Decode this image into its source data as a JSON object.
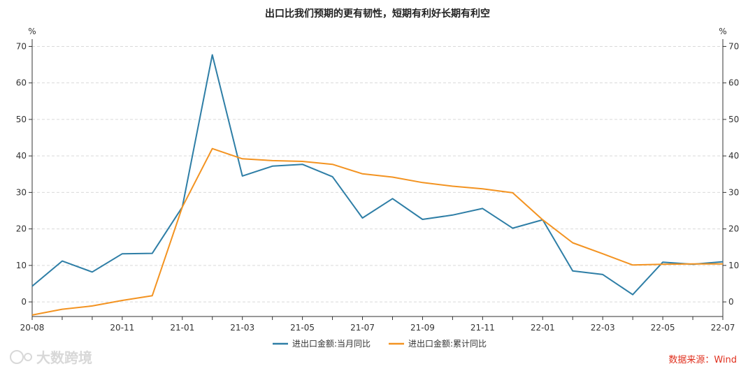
{
  "chart_data": {
    "type": "line",
    "title": "出口比我们预期的更有韧性，短期有利好长期有利空",
    "left_unit": "%",
    "right_unit": "%",
    "ylim": [
      -4,
      72
    ],
    "yticks": [
      0,
      10,
      20,
      30,
      40,
      50,
      60,
      70
    ],
    "grid": true,
    "legend_position": "bottom",
    "categories": [
      "20-08",
      "20-09",
      "20-10",
      "20-11",
      "20-12",
      "21-01",
      "21-02",
      "21-03",
      "21-04",
      "21-05",
      "21-06",
      "21-07",
      "21-08",
      "21-09",
      "21-10",
      "21-11",
      "21-12",
      "22-01",
      "22-02",
      "22-03",
      "22-04",
      "22-05",
      "22-06",
      "22-07"
    ],
    "x_tick_labels": [
      "20-08",
      "20-11",
      "21-01",
      "21-03",
      "21-05",
      "21-07",
      "21-09",
      "21-11",
      "22-01",
      "22-03",
      "22-05",
      "22-07"
    ],
    "series": [
      {
        "name": "进出口金额:当月同比",
        "color": "#2e7ea6",
        "values": [
          4.3,
          11.2,
          8.2,
          13.2,
          13.3,
          26.0,
          67.7,
          34.5,
          37.2,
          37.7,
          34.3,
          23.0,
          28.3,
          22.6,
          23.8,
          25.6,
          20.2,
          22.5,
          8.5,
          7.5,
          2.0,
          10.9,
          10.3,
          11.0
        ]
      },
      {
        "name": "进出口金额:累计同比",
        "color": "#f39321",
        "values": [
          -3.6,
          -2.0,
          -1.1,
          0.4,
          1.7,
          26.0,
          42.0,
          39.2,
          38.7,
          38.5,
          37.7,
          35.1,
          34.2,
          32.7,
          31.7,
          31.0,
          29.9,
          22.5,
          16.2,
          13.2,
          10.1,
          10.3,
          10.4,
          10.4
        ]
      }
    ]
  },
  "source_text": "数据来源：Wind",
  "watermark_text": "大数跨境",
  "colors": {
    "axis": "#333333",
    "grid": "#d9d9d9",
    "source": "#e0301e"
  }
}
